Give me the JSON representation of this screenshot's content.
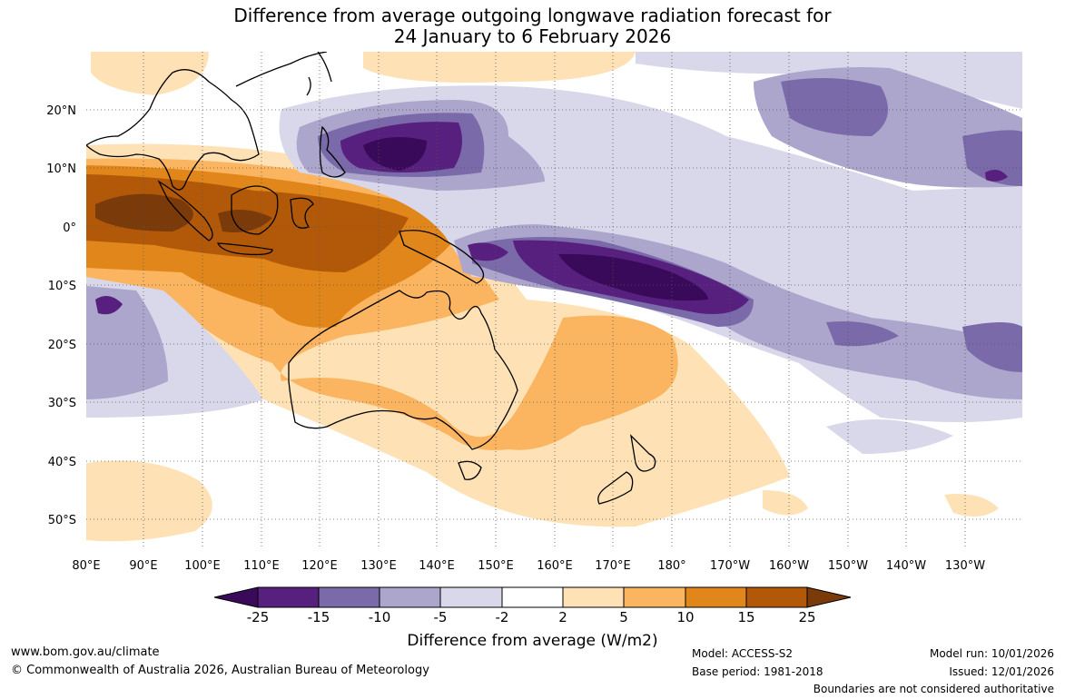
{
  "title_line1": "Difference from average outgoing longwave radiation forecast for",
  "title_line2": "24 January to 6 February 2026",
  "map": {
    "lat_labels": [
      "20°N",
      "10°N",
      "0°",
      "10°S",
      "20°S",
      "30°S",
      "40°S",
      "50°S"
    ],
    "lon_labels": [
      "80°E",
      "90°E",
      "100°E",
      "110°E",
      "120°E",
      "130°E",
      "140°E",
      "150°E",
      "160°E",
      "170°E",
      "180°",
      "170°W",
      "160°W",
      "150°W",
      "140°W",
      "130°W"
    ]
  },
  "colorbar": {
    "ticks": [
      "-25",
      "-15",
      "-10",
      "-5",
      "-2",
      "2",
      "5",
      "10",
      "15",
      "25"
    ],
    "colors": [
      "#3a0a5a",
      "#57207f",
      "#7b6aa9",
      "#aca5cc",
      "#d9d8ea",
      "#ffffff",
      "#fee2b6",
      "#fbb460",
      "#e0861a",
      "#b25909",
      "#7b3a0a"
    ],
    "label": "Difference from average (W/m2)"
  },
  "footer": {
    "website": "www.bom.gov.au/climate",
    "copyright": "© Commonwealth of Australia 2026, Australian Bureau of Meteorology",
    "model": "Model: ACCESS-S2",
    "base_period": "Base period: 1981-2018",
    "model_run": "Model run: 10/01/2026",
    "issued": "Issued: 12/01/2026",
    "disclaimer": "Boundaries are not considered authoritative"
  }
}
